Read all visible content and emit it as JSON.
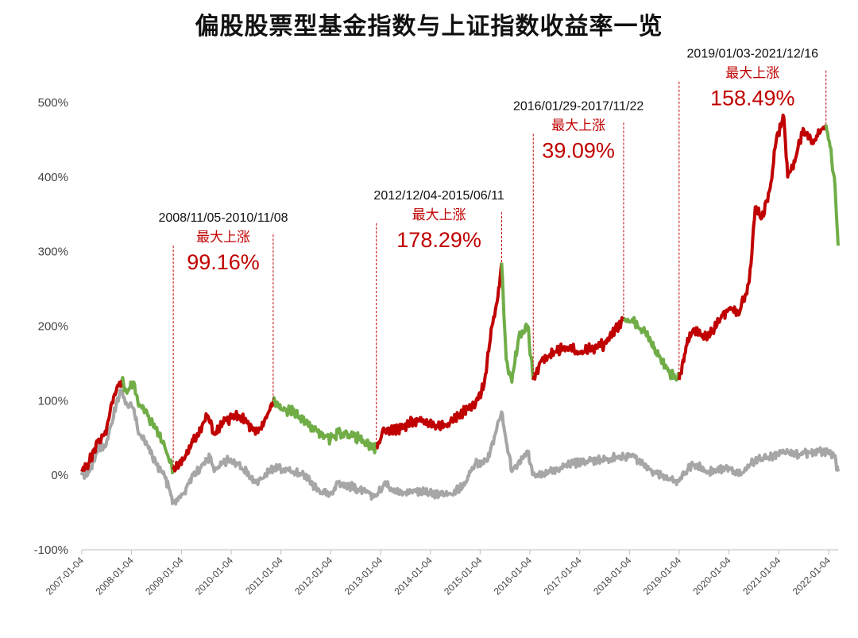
{
  "chart_data": {
    "type": "line",
    "title": "偏股股票型基金指数与上证指数收益率一览",
    "xlabel": "",
    "ylabel": "",
    "y_unit": "%",
    "ylim": [
      -100,
      500
    ],
    "y_ticks": [
      -100,
      0,
      100,
      200,
      300,
      400,
      500
    ],
    "y_tick_labels": [
      "-100%",
      "0%",
      "100%",
      "200%",
      "300%",
      "400%",
      "500%"
    ],
    "x_tick_labels": [
      "2007-01-04",
      "2008-01-04",
      "2009-01-04",
      "2010-01-04",
      "2011-01-04",
      "2012-01-04",
      "2013-01-04",
      "2014-01-04",
      "2015-01-04",
      "2016-01-04",
      "2017-01-04",
      "2018-01-04",
      "2019-01-04",
      "2020-01-04",
      "2021-01-04",
      "2022-01-04"
    ],
    "xlim": [
      "2007-01-04",
      "2022-03-15"
    ],
    "grid": false,
    "legend": "none",
    "colors": {
      "rise": "#c00000",
      "fall": "#70ad47",
      "sse": "#a6a6a6",
      "annotation_line": "#c00000"
    },
    "series": [
      {
        "role": "fund_index",
        "points": [
          [
            "2007-01-04",
            5
          ],
          [
            "2007-03-01",
            18
          ],
          [
            "2007-05-01",
            45
          ],
          [
            "2007-07-01",
            55
          ],
          [
            "2007-08-01",
            88
          ],
          [
            "2007-10-01",
            120
          ],
          [
            "2007-10-25",
            128
          ],
          [
            "2007-12-01",
            110
          ],
          [
            "2008-01-15",
            125
          ],
          [
            "2008-03-01",
            95
          ],
          [
            "2008-05-01",
            80
          ],
          [
            "2008-07-01",
            62
          ],
          [
            "2008-09-01",
            40
          ],
          [
            "2008-11-05",
            8
          ],
          [
            "2009-01-15",
            20
          ],
          [
            "2009-04-01",
            45
          ],
          [
            "2009-07-15",
            80
          ],
          [
            "2009-09-01",
            55
          ],
          [
            "2009-12-01",
            75
          ],
          [
            "2010-03-01",
            80
          ],
          [
            "2010-05-01",
            70
          ],
          [
            "2010-07-01",
            55
          ],
          [
            "2010-09-01",
            70
          ],
          [
            "2010-11-08",
            99
          ],
          [
            "2011-01-15",
            88
          ],
          [
            "2011-04-01",
            85
          ],
          [
            "2011-07-01",
            72
          ],
          [
            "2011-10-01",
            58
          ],
          [
            "2012-01-01",
            48
          ],
          [
            "2012-03-01",
            57
          ],
          [
            "2012-06-01",
            55
          ],
          [
            "2012-09-01",
            45
          ],
          [
            "2012-12-04",
            36
          ],
          [
            "2013-02-01",
            60
          ],
          [
            "2013-06-01",
            62
          ],
          [
            "2013-09-01",
            73
          ],
          [
            "2014-01-01",
            70
          ],
          [
            "2014-03-01",
            65
          ],
          [
            "2014-06-01",
            72
          ],
          [
            "2014-09-01",
            85
          ],
          [
            "2014-12-01",
            95
          ],
          [
            "2015-02-01",
            120
          ],
          [
            "2015-04-01",
            200
          ],
          [
            "2015-05-15",
            240
          ],
          [
            "2015-06-11",
            285
          ],
          [
            "2015-07-15",
            155
          ],
          [
            "2015-08-25",
            125
          ],
          [
            "2015-10-15",
            185
          ],
          [
            "2015-12-20",
            200
          ],
          [
            "2016-01-29",
            128
          ],
          [
            "2016-04-01",
            155
          ],
          [
            "2016-07-01",
            165
          ],
          [
            "2016-10-01",
            172
          ],
          [
            "2017-01-01",
            165
          ],
          [
            "2017-04-01",
            170
          ],
          [
            "2017-07-01",
            175
          ],
          [
            "2017-09-01",
            190
          ],
          [
            "2017-11-22",
            210
          ],
          [
            "2018-02-01",
            205
          ],
          [
            "2018-04-15",
            195
          ],
          [
            "2018-07-01",
            170
          ],
          [
            "2018-10-15",
            140
          ],
          [
            "2019-01-03",
            128
          ],
          [
            "2019-03-01",
            175
          ],
          [
            "2019-04-15",
            195
          ],
          [
            "2019-08-01",
            185
          ],
          [
            "2019-11-01",
            210
          ],
          [
            "2020-01-15",
            225
          ],
          [
            "2020-03-15",
            215
          ],
          [
            "2020-06-01",
            260
          ],
          [
            "2020-07-15",
            360
          ],
          [
            "2020-09-01",
            345
          ],
          [
            "2020-11-01",
            385
          ],
          [
            "2020-12-20",
            455
          ],
          [
            "2021-02-10",
            480
          ],
          [
            "2021-03-10",
            400
          ],
          [
            "2021-05-01",
            420
          ],
          [
            "2021-07-01",
            465
          ],
          [
            "2021-09-01",
            445
          ],
          [
            "2021-10-15",
            455
          ],
          [
            "2021-12-16",
            470
          ],
          [
            "2022-01-15",
            440
          ],
          [
            "2022-02-15",
            400
          ],
          [
            "2022-03-05",
            340
          ],
          [
            "2022-03-15",
            308
          ]
        ]
      },
      {
        "role": "sse_index",
        "points": [
          [
            "2007-01-04",
            0
          ],
          [
            "2007-03-01",
            5
          ],
          [
            "2007-05-01",
            35
          ],
          [
            "2007-07-01",
            40
          ],
          [
            "2007-08-01",
            65
          ],
          [
            "2007-10-16",
            115
          ],
          [
            "2007-12-01",
            95
          ],
          [
            "2008-01-15",
            90
          ],
          [
            "2008-03-01",
            55
          ],
          [
            "2008-05-01",
            40
          ],
          [
            "2008-07-01",
            15
          ],
          [
            "2008-09-01",
            0
          ],
          [
            "2008-11-05",
            -35
          ],
          [
            "2009-01-15",
            -25
          ],
          [
            "2009-04-01",
            0
          ],
          [
            "2009-08-01",
            25
          ],
          [
            "2009-09-01",
            5
          ],
          [
            "2009-12-01",
            20
          ],
          [
            "2010-03-01",
            15
          ],
          [
            "2010-07-01",
            -10
          ],
          [
            "2010-11-08",
            10
          ],
          [
            "2011-04-01",
            5
          ],
          [
            "2011-07-01",
            0
          ],
          [
            "2011-10-01",
            -20
          ],
          [
            "2012-01-01",
            -25
          ],
          [
            "2012-03-01",
            -10
          ],
          [
            "2012-06-01",
            -15
          ],
          [
            "2012-09-01",
            -22
          ],
          [
            "2012-12-04",
            -28
          ],
          [
            "2013-02-01",
            -10
          ],
          [
            "2013-06-01",
            -25
          ],
          [
            "2013-09-01",
            -20
          ],
          [
            "2014-01-01",
            -25
          ],
          [
            "2014-06-01",
            -25
          ],
          [
            "2014-09-01",
            -15
          ],
          [
            "2014-12-01",
            15
          ],
          [
            "2015-03-01",
            20
          ],
          [
            "2015-06-11",
            85
          ],
          [
            "2015-07-15",
            45
          ],
          [
            "2015-08-25",
            5
          ],
          [
            "2015-12-20",
            30
          ],
          [
            "2016-01-29",
            2
          ],
          [
            "2016-06-01",
            5
          ],
          [
            "2016-11-01",
            15
          ],
          [
            "2017-04-01",
            20
          ],
          [
            "2017-11-22",
            25
          ],
          [
            "2018-01-25",
            28
          ],
          [
            "2018-04-01",
            15
          ],
          [
            "2018-07-01",
            5
          ],
          [
            "2018-10-15",
            -5
          ],
          [
            "2019-01-03",
            -8
          ],
          [
            "2019-04-15",
            15
          ],
          [
            "2019-08-01",
            5
          ],
          [
            "2020-01-15",
            10
          ],
          [
            "2020-03-15",
            0
          ],
          [
            "2020-07-15",
            20
          ],
          [
            "2021-02-10",
            30
          ],
          [
            "2021-06-01",
            28
          ],
          [
            "2021-09-15",
            30
          ],
          [
            "2021-12-16",
            32
          ],
          [
            "2022-02-15",
            25
          ],
          [
            "2022-03-15",
            5
          ]
        ]
      }
    ],
    "segments": [
      {
        "start": "2007-01-04",
        "end": "2007-10-25",
        "trend": "rise"
      },
      {
        "start": "2007-10-25",
        "end": "2008-11-05",
        "trend": "fall"
      },
      {
        "start": "2008-11-05",
        "end": "2010-11-08",
        "trend": "rise"
      },
      {
        "start": "2010-11-08",
        "end": "2012-12-04",
        "trend": "fall"
      },
      {
        "start": "2012-12-04",
        "end": "2015-06-11",
        "trend": "rise"
      },
      {
        "start": "2015-06-11",
        "end": "2016-01-29",
        "trend": "fall"
      },
      {
        "start": "2016-01-29",
        "end": "2017-11-22",
        "trend": "rise"
      },
      {
        "start": "2017-11-22",
        "end": "2019-01-03",
        "trend": "fall"
      },
      {
        "start": "2019-01-03",
        "end": "2021-12-16",
        "trend": "rise"
      },
      {
        "start": "2021-12-16",
        "end": "2022-03-15",
        "trend": "fall"
      }
    ],
    "annotations": [
      {
        "start": "2008-11-05",
        "end": "2010-11-08",
        "range_text": "2008/11/05-2010/11/08",
        "label": "最大上涨",
        "value_text": "99.16%",
        "text_level": 340
      },
      {
        "start": "2012-12-04",
        "end": "2015-06-11",
        "range_text": "2012/12/04-2015/06/11",
        "label": "最大上涨",
        "value_text": "178.29%",
        "text_level": 370
      },
      {
        "start": "2016-01-29",
        "end": "2017-11-22",
        "range_text": "2016/01/29-2017/11/22",
        "label": "最大上涨",
        "value_text": "39.09%",
        "text_level": 490
      },
      {
        "start": "2019-01-03",
        "end": "2021-12-16",
        "range_text": "2019/01/03-2021/12/16",
        "label": "最大上涨",
        "value_text": "158.49%",
        "text_level": 560
      }
    ]
  }
}
